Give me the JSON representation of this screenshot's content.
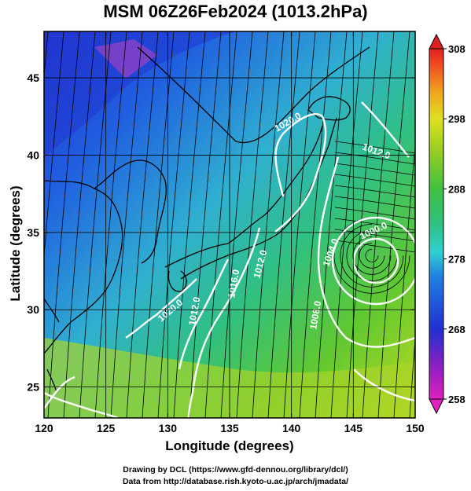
{
  "title": "MSM 06Z26Feb2024 (1013.2hPa)",
  "axes": {
    "xlabel": "Longitude (degrees)",
    "ylabel": "Latitude  (degrees)",
    "x_ticks": [
      "120",
      "125",
      "130",
      "135",
      "140",
      "145",
      "150"
    ],
    "y_ticks": [
      "25",
      "30",
      "35",
      "40",
      "45"
    ]
  },
  "colorbar": {
    "ticks": [
      "308",
      "298",
      "288",
      "278",
      "268",
      "258"
    ],
    "min": 258,
    "max": 308,
    "colors": [
      "#e020c0",
      "#9020c0",
      "#2030d0",
      "#2080e0",
      "#30d0d0",
      "#30c080",
      "#40c040",
      "#a0d020",
      "#e0e020",
      "#f0a020",
      "#f05020",
      "#e02020"
    ]
  },
  "map": {
    "lon_range": [
      120,
      150
    ],
    "lat_range": [
      23,
      48
    ],
    "pressure_contour_labels": [
      "1020.0",
      "1012.0",
      "1000.0",
      "1004.0",
      "1012.0",
      "1016.0",
      "1008.0",
      "1012.0",
      "1020.0"
    ],
    "low_center": {
      "lon": 146.5,
      "lat": 33.5
    }
  },
  "credits": {
    "line1": "Drawing by DCL (https://www.gfd-dennou.org/library/dcl/)",
    "line2": "Data from http://database.rish.kyoto-u.ac.jp/arch/jmadata/"
  }
}
